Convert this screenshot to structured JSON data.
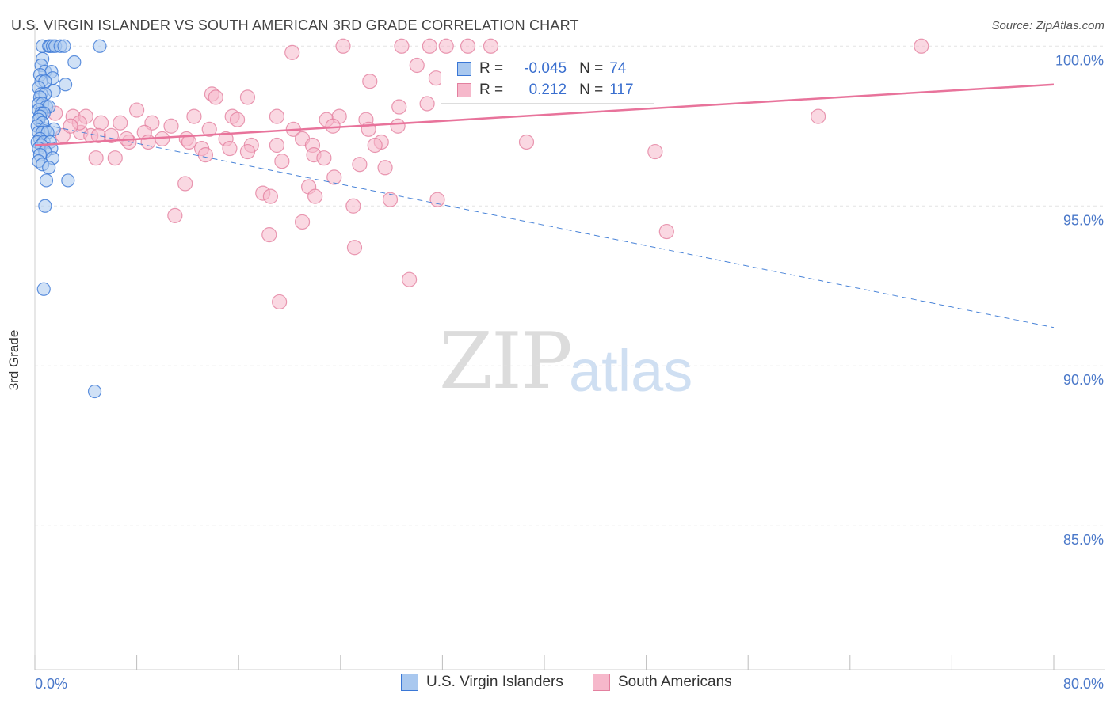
{
  "header": {
    "title": "U.S. VIRGIN ISLANDER VS SOUTH AMERICAN 3RD GRADE CORRELATION CHART",
    "source": "Source: ZipAtlas.com"
  },
  "watermark": {
    "zip": "ZIP",
    "atlas": "atlas"
  },
  "legend": {
    "r_label": "R =",
    "n_label": "N =",
    "rows": [
      {
        "r": "-0.045",
        "n": "74",
        "color": "#a9c8ef"
      },
      {
        "r": "0.212",
        "n": "117",
        "color": "#f6b8cb"
      }
    ]
  },
  "bottom_legend": {
    "blue": "U.S. Virgin Islanders",
    "pink": "South Americans"
  },
  "colors": {
    "blue_fill": "#a9c8ef",
    "blue_stroke": "#3a77d6",
    "pink_fill": "#f6b8cb",
    "pink_stroke": "#e3809f",
    "pink_line": "#e8739b",
    "blue_line": "#4a84d8",
    "axis_label": "#4a78c9"
  },
  "chart_data": {
    "type": "scatter",
    "title": "U.S. VIRGIN ISLANDER VS SOUTH AMERICAN 3RD GRADE CORRELATION CHART",
    "xlabel": "",
    "ylabel": "3rd Grade",
    "xlim": [
      0,
      80
    ],
    "ylim": [
      80.5,
      100.7
    ],
    "x_tick_labels": [
      "0.0%",
      "80.0%"
    ],
    "y_ticks": [
      100,
      95,
      90,
      85
    ],
    "y_tick_labels": [
      "100.0%",
      "95.0%",
      "90.0%",
      "85.0%"
    ],
    "grid": true,
    "legend_position": "top-center",
    "series": [
      {
        "name": "U.S. Virgin Islanders",
        "r": -0.045,
        "n": 74,
        "trend": {
          "x": [
            0,
            80
          ],
          "y": [
            97.6,
            91.2
          ],
          "style": "dashed"
        },
        "points": [
          [
            0.6,
            100
          ],
          [
            1.1,
            100
          ],
          [
            1.2,
            100
          ],
          [
            1.4,
            100
          ],
          [
            1.6,
            100
          ],
          [
            2.0,
            100
          ],
          [
            2.3,
            100
          ],
          [
            5.1,
            100
          ],
          [
            0.6,
            99.6
          ],
          [
            3.1,
            99.5
          ],
          [
            0.5,
            99.4
          ],
          [
            0.8,
            99.2
          ],
          [
            1.3,
            99.2
          ],
          [
            0.4,
            99.1
          ],
          [
            1.4,
            99.0
          ],
          [
            0.5,
            98.9
          ],
          [
            0.8,
            98.9
          ],
          [
            2.4,
            98.8
          ],
          [
            0.3,
            98.7
          ],
          [
            1.5,
            98.6
          ],
          [
            0.5,
            98.5
          ],
          [
            0.8,
            98.5
          ],
          [
            0.4,
            98.4
          ],
          [
            0.3,
            98.2
          ],
          [
            0.6,
            98.2
          ],
          [
            0.9,
            98.1
          ],
          [
            1.1,
            98.1
          ],
          [
            0.3,
            98.0
          ],
          [
            0.5,
            97.9
          ],
          [
            0.7,
            97.9
          ],
          [
            0.4,
            97.8
          ],
          [
            0.3,
            97.7
          ],
          [
            0.6,
            97.6
          ],
          [
            0.2,
            97.5
          ],
          [
            0.8,
            97.4
          ],
          [
            1.5,
            97.4
          ],
          [
            0.3,
            97.3
          ],
          [
            0.6,
            97.3
          ],
          [
            1.0,
            97.3
          ],
          [
            0.4,
            97.1
          ],
          [
            0.2,
            97.0
          ],
          [
            0.7,
            97.0
          ],
          [
            1.2,
            97.0
          ],
          [
            0.5,
            96.9
          ],
          [
            0.3,
            96.8
          ],
          [
            1.3,
            96.8
          ],
          [
            0.8,
            96.7
          ],
          [
            0.4,
            96.6
          ],
          [
            1.4,
            96.5
          ],
          [
            0.3,
            96.4
          ],
          [
            0.6,
            96.3
          ],
          [
            1.1,
            96.2
          ],
          [
            0.9,
            95.8
          ],
          [
            2.6,
            95.8
          ],
          [
            0.8,
            95.0
          ],
          [
            0.7,
            92.4
          ],
          [
            4.7,
            89.2
          ]
        ]
      },
      {
        "name": "South Americans",
        "r": 0.212,
        "n": 117,
        "trend": {
          "x": [
            0,
            80
          ],
          "y": [
            96.9,
            98.8
          ]
        },
        "points": [
          [
            24.2,
            100
          ],
          [
            28.8,
            100
          ],
          [
            31.0,
            100
          ],
          [
            32.3,
            100
          ],
          [
            34.0,
            100
          ],
          [
            35.8,
            100
          ],
          [
            69.6,
            100
          ],
          [
            20.2,
            99.8
          ],
          [
            30.0,
            99.4
          ],
          [
            26.3,
            98.9
          ],
          [
            31.5,
            99.0
          ],
          [
            13.9,
            98.5
          ],
          [
            16.7,
            98.4
          ],
          [
            14.2,
            98.4
          ],
          [
            28.6,
            98.1
          ],
          [
            30.8,
            98.2
          ],
          [
            8.0,
            98.0
          ],
          [
            1.6,
            97.9
          ],
          [
            3.0,
            97.8
          ],
          [
            4.0,
            97.8
          ],
          [
            12.5,
            97.8
          ],
          [
            19.0,
            97.8
          ],
          [
            15.5,
            97.8
          ],
          [
            22.9,
            97.7
          ],
          [
            23.9,
            97.8
          ],
          [
            26.0,
            97.7
          ],
          [
            15.9,
            97.7
          ],
          [
            5.2,
            97.6
          ],
          [
            6.7,
            97.6
          ],
          [
            9.2,
            97.6
          ],
          [
            23.4,
            97.5
          ],
          [
            28.5,
            97.5
          ],
          [
            10.7,
            97.5
          ],
          [
            26.2,
            97.4
          ],
          [
            13.7,
            97.4
          ],
          [
            8.6,
            97.3
          ],
          [
            20.3,
            97.4
          ],
          [
            3.6,
            97.3
          ],
          [
            2.2,
            97.2
          ],
          [
            4.4,
            97.2
          ],
          [
            5.0,
            97.2
          ],
          [
            6.0,
            97.2
          ],
          [
            15.0,
            97.1
          ],
          [
            10.0,
            97.1
          ],
          [
            11.9,
            97.1
          ],
          [
            21.0,
            97.1
          ],
          [
            7.4,
            97.0
          ],
          [
            8.9,
            97.0
          ],
          [
            12.1,
            97.0
          ],
          [
            27.2,
            97.0
          ],
          [
            38.6,
            97.0
          ],
          [
            19.0,
            96.9
          ],
          [
            21.8,
            96.9
          ],
          [
            17.0,
            96.9
          ],
          [
            26.7,
            96.9
          ],
          [
            13.1,
            96.8
          ],
          [
            15.3,
            96.8
          ],
          [
            16.7,
            96.7
          ],
          [
            48.7,
            96.7
          ],
          [
            13.4,
            96.6
          ],
          [
            21.9,
            96.6
          ],
          [
            6.3,
            96.5
          ],
          [
            4.8,
            96.5
          ],
          [
            19.4,
            96.4
          ],
          [
            22.7,
            96.5
          ],
          [
            25.5,
            96.3
          ],
          [
            27.5,
            96.2
          ],
          [
            23.5,
            95.9
          ],
          [
            11.8,
            95.7
          ],
          [
            21.5,
            95.6
          ],
          [
            17.9,
            95.4
          ],
          [
            22.0,
            95.3
          ],
          [
            18.5,
            95.3
          ],
          [
            27.9,
            95.2
          ],
          [
            31.6,
            95.2
          ],
          [
            25.0,
            95.0
          ],
          [
            11.0,
            94.7
          ],
          [
            21.0,
            94.5
          ],
          [
            18.4,
            94.1
          ],
          [
            49.6,
            94.2
          ],
          [
            25.1,
            93.7
          ],
          [
            29.4,
            92.7
          ],
          [
            19.2,
            92.0
          ],
          [
            61.5,
            97.8
          ],
          [
            3.5,
            97.6
          ],
          [
            7.2,
            97.1
          ],
          [
            2.8,
            97.5
          ]
        ]
      }
    ]
  }
}
